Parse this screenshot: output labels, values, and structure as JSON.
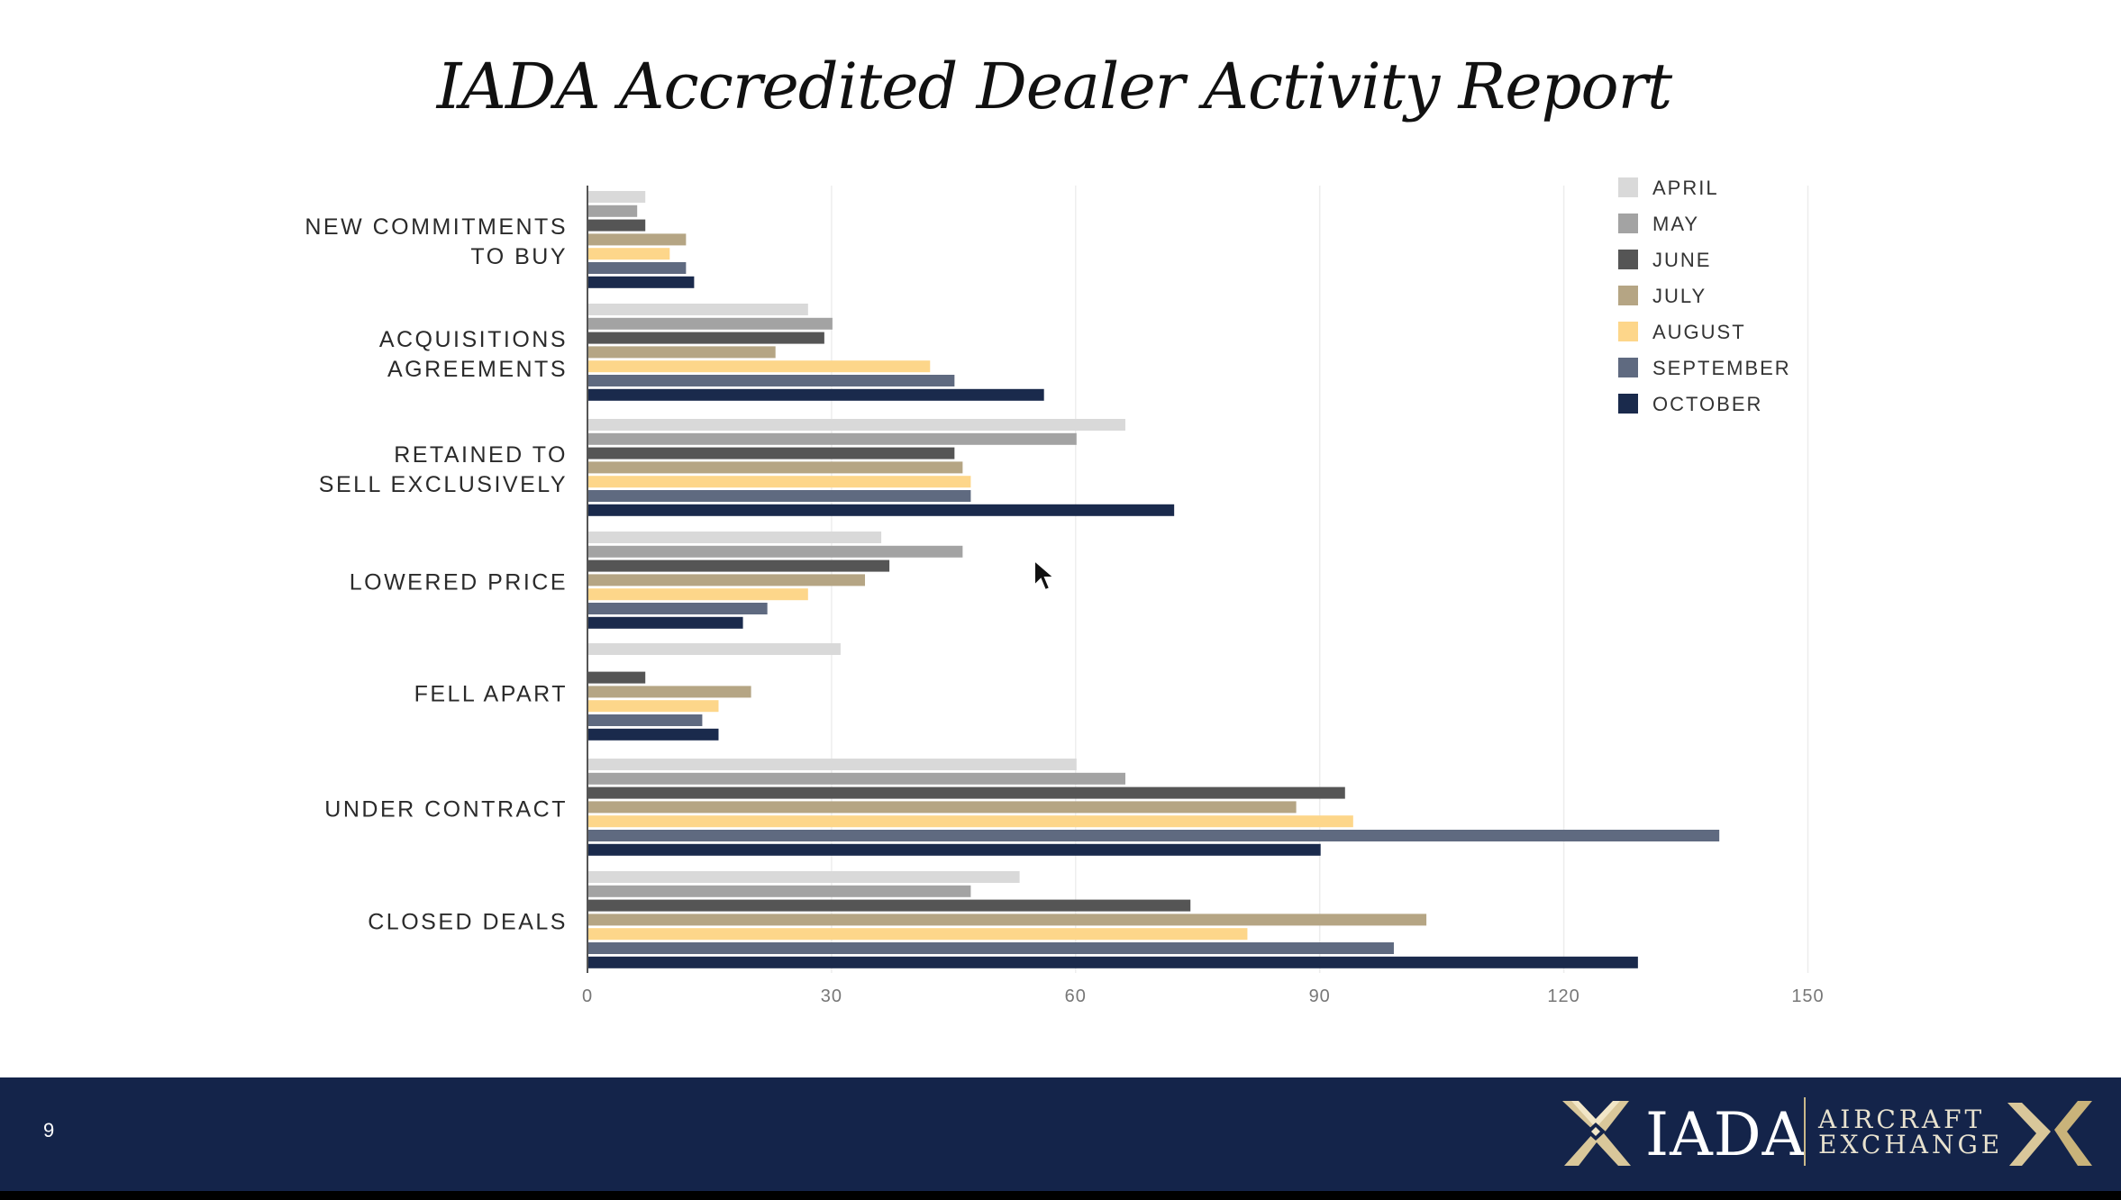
{
  "slide": {
    "title": "IADA Accredited Dealer Activity Report",
    "page_number": "9"
  },
  "footer": {
    "logo_text": "IADA",
    "logo_sub_line1": "AIRCRAFT",
    "logo_sub_line2": "EXCHANGE"
  },
  "colors": {
    "footer_bg": "#14244a",
    "april": "#d9d9d9",
    "may": "#a3a3a3",
    "june": "#555555",
    "july": "#b5a584",
    "august": "#fdd68a",
    "september": "#5f6a80",
    "october": "#1a2a4c"
  },
  "chart_data": {
    "type": "bar",
    "orientation": "horizontal",
    "title": "IADA Accredited Dealer Activity Report",
    "categories": [
      [
        "NEW COMMITMENTS",
        "TO BUY"
      ],
      [
        "ACQUISITIONS",
        "AGREEMENTS"
      ],
      [
        "RETAINED TO",
        "SELL EXCLUSIVELY"
      ],
      [
        "LOWERED PRICE"
      ],
      [
        "FELL APART"
      ],
      [
        "UNDER CONTRACT"
      ],
      [
        "CLOSED DEALS"
      ]
    ],
    "series": [
      {
        "name": "APRIL",
        "color": "#d9d9d9",
        "values": [
          7,
          27,
          66,
          36,
          31,
          60,
          53
        ]
      },
      {
        "name": "MAY",
        "color": "#a3a3a3",
        "values": [
          6,
          30,
          60,
          46,
          0,
          66,
          47
        ]
      },
      {
        "name": "JUNE",
        "color": "#555555",
        "values": [
          7,
          29,
          45,
          37,
          7,
          93,
          74
        ]
      },
      {
        "name": "JULY",
        "color": "#b5a584",
        "values": [
          12,
          23,
          46,
          34,
          20,
          87,
          103
        ]
      },
      {
        "name": "AUGUST",
        "color": "#fdd68a",
        "values": [
          10,
          42,
          47,
          27,
          16,
          94,
          81
        ]
      },
      {
        "name": "SEPTEMBER",
        "color": "#5f6a80",
        "values": [
          12,
          45,
          47,
          22,
          14,
          139,
          99
        ]
      },
      {
        "name": "OCTOBER",
        "color": "#1a2a4c",
        "values": [
          13,
          56,
          72,
          19,
          16,
          90,
          129
        ]
      }
    ],
    "xticks": [
      0,
      30,
      60,
      90,
      120,
      150
    ],
    "xlim": [
      0,
      150
    ],
    "grid": true,
    "legend_position": "top-right"
  }
}
